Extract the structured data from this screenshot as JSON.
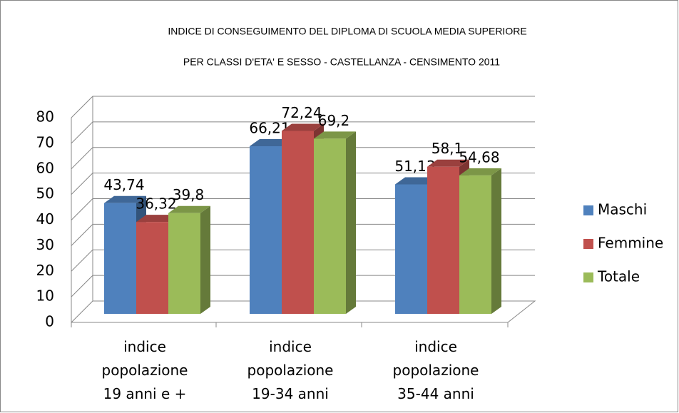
{
  "chart_data": {
    "type": "bar3d",
    "title": "INDICE DI CONSEGUIMENTO DEL DIPLOMA DI SCUOLA MEDIA SUPERIORE",
    "subtitle": "PER CLASSI D'ETA' E SESSO - CASTELLANZA - CENSIMENTO 2011",
    "categories": [
      "indice popolazione 19 anni e +",
      "indice popolazione 19-34 anni",
      "indice popolazione 35-44 anni"
    ],
    "series": [
      {
        "name": "Maschi",
        "color": "#4f81bd",
        "values": [
          43.74,
          66.21,
          51.13
        ],
        "value_labels": [
          "43,74",
          "66,21",
          "51,13"
        ]
      },
      {
        "name": "Femmine",
        "color": "#c0504d",
        "values": [
          36.32,
          72.24,
          58.1
        ],
        "value_labels": [
          "36,32",
          "72,24",
          "58,1"
        ]
      },
      {
        "name": "Totale",
        "color": "#9bbb59",
        "values": [
          39.8,
          69.2,
          54.68
        ],
        "value_labels": [
          "39,8",
          "69,2",
          "54,68"
        ]
      }
    ],
    "ylim": [
      0,
      80
    ],
    "yticks": [
      0,
      10,
      20,
      30,
      40,
      50,
      60,
      70,
      80
    ],
    "grid": true,
    "legend": "right"
  }
}
